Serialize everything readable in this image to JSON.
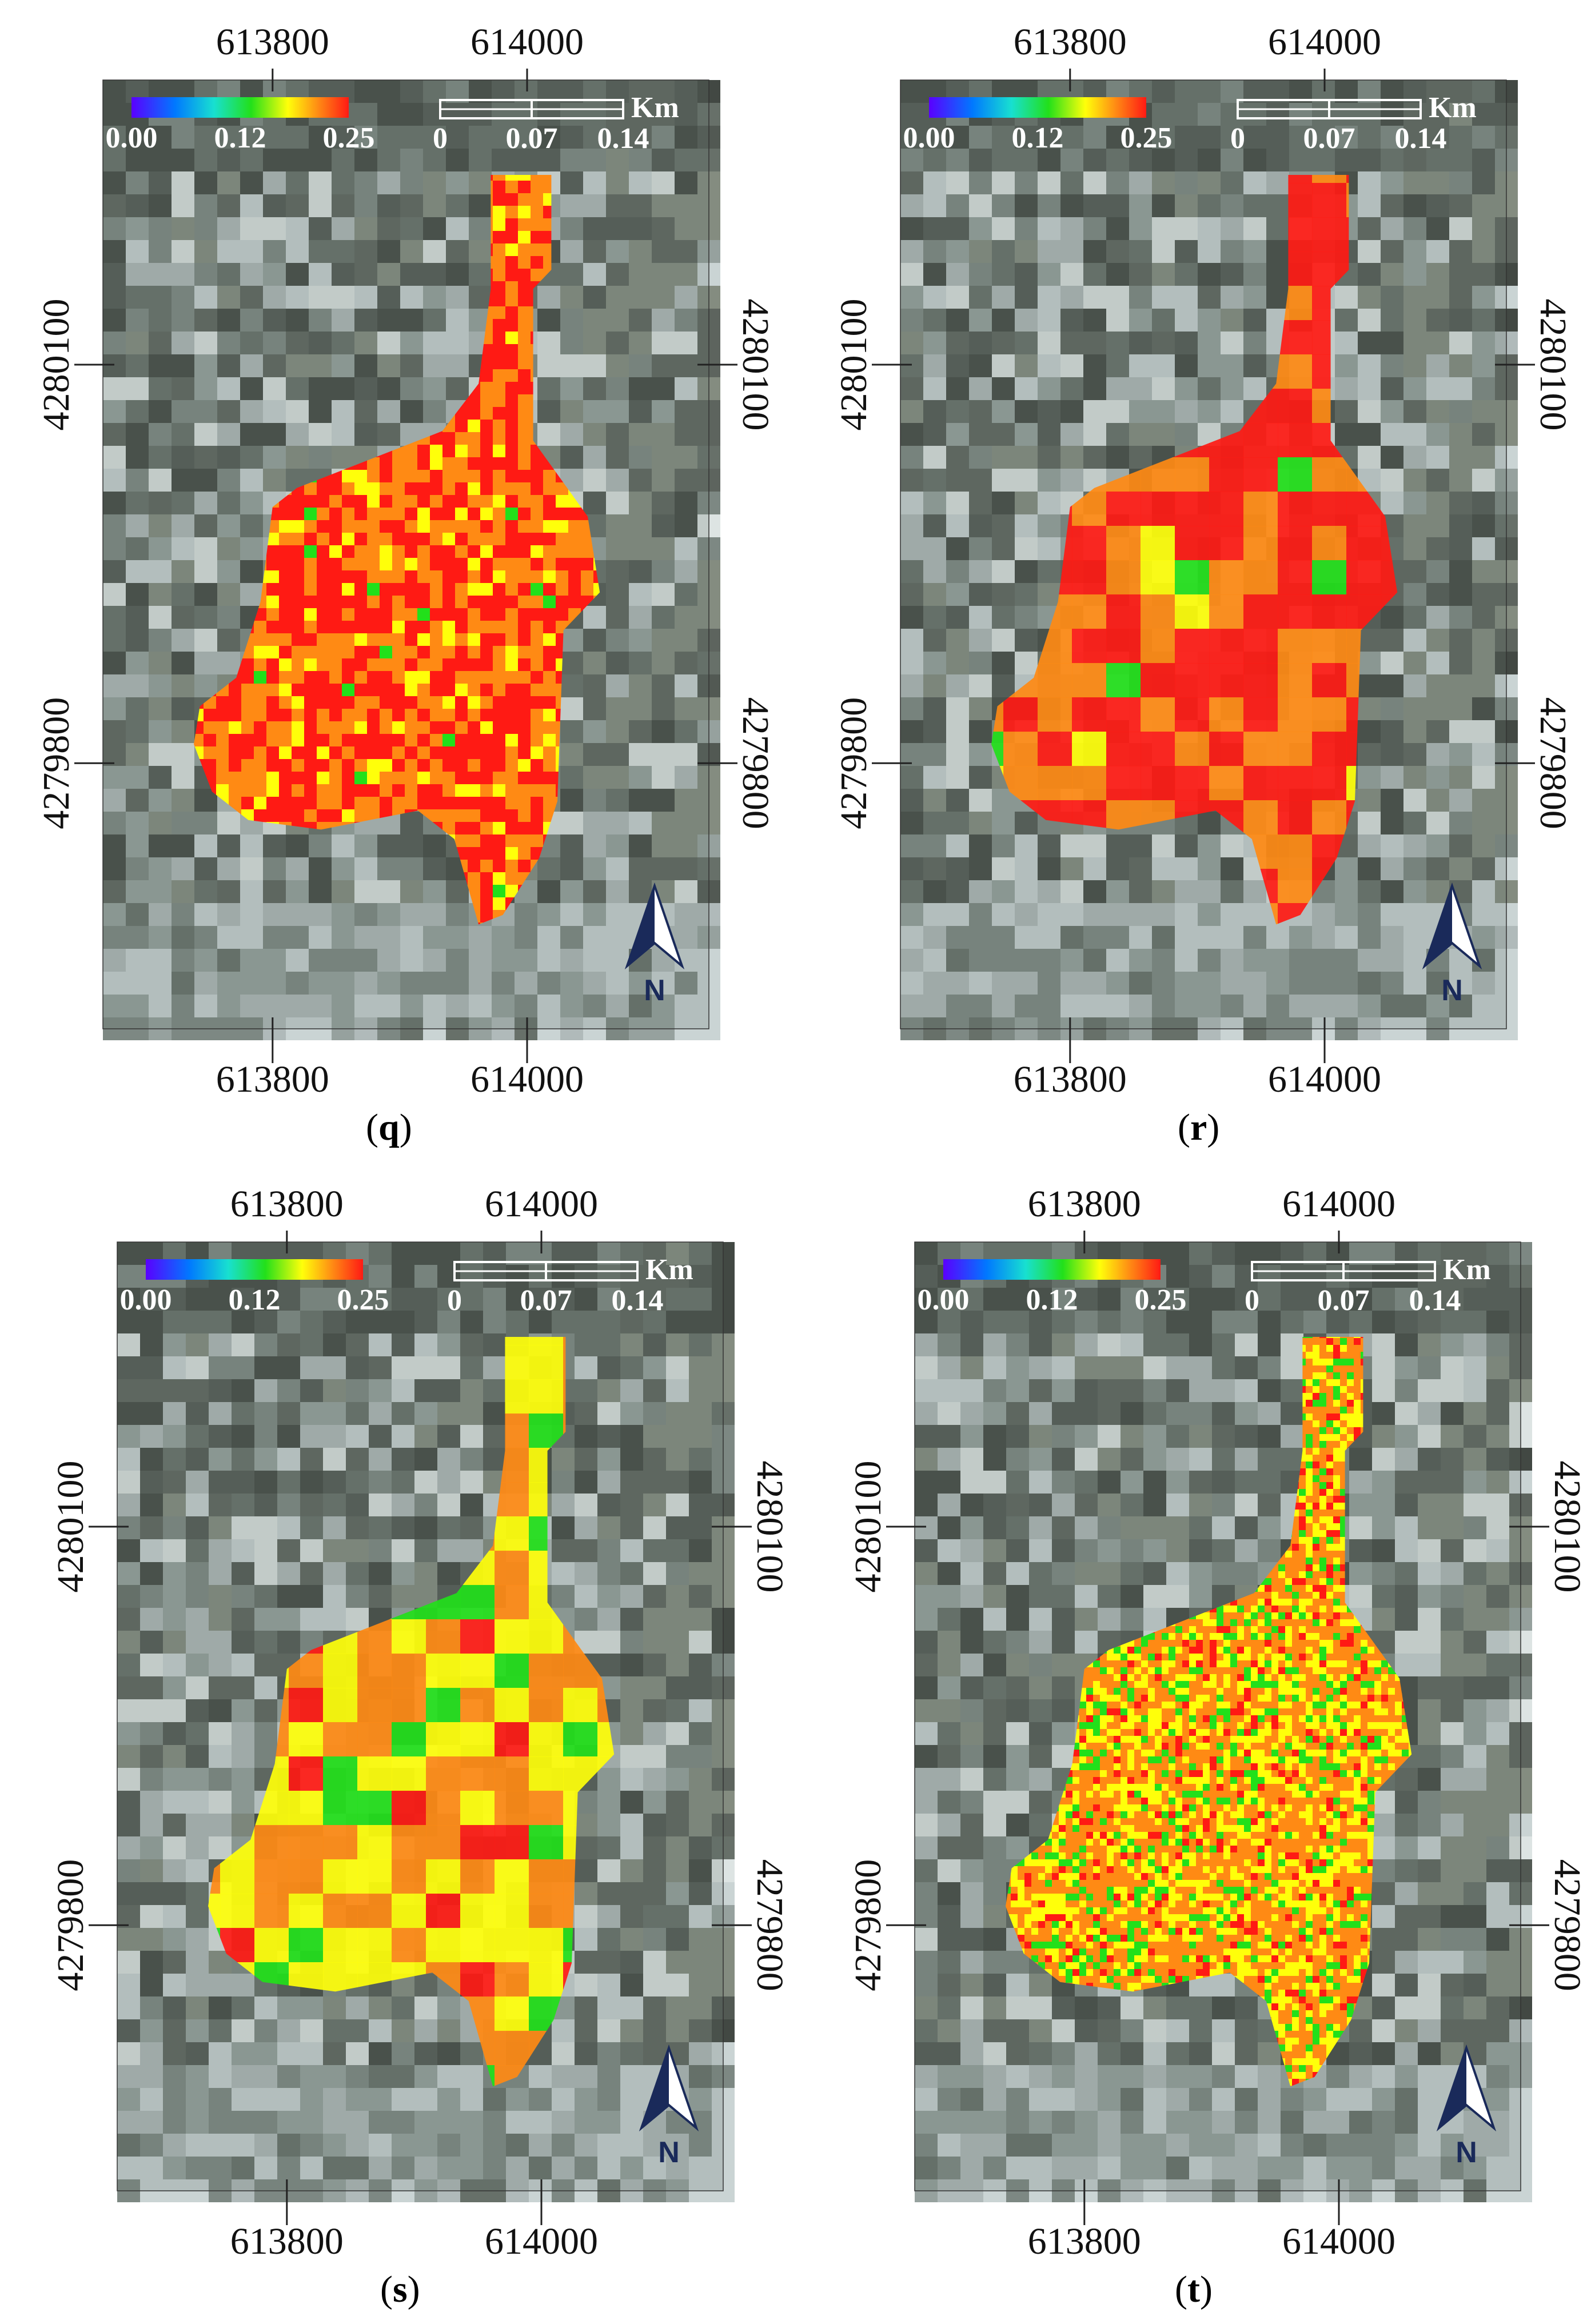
{
  "panels": [
    {
      "id": "q",
      "caption_letter": "q",
      "x_ticks": [
        "613800",
        "614000"
      ],
      "y_ticks_left": [
        "4280100",
        "4279800"
      ],
      "y_ticks_right": [
        "4280100",
        "4279800"
      ],
      "colorbar": {
        "labels": [
          "0.00",
          "0.12",
          "0.25"
        ],
        "min": 0.0,
        "max": 0.25
      },
      "scalebar": {
        "unit": "Km",
        "labels": [
          "0",
          "0.07",
          "0.14"
        ]
      },
      "north": "N",
      "style": "blocky-fine"
    },
    {
      "id": "r",
      "caption_letter": "r",
      "x_ticks": [
        "613800",
        "614000"
      ],
      "y_ticks_left": [
        "4280100",
        "4279800"
      ],
      "y_ticks_right": [
        "4280100",
        "4279800"
      ],
      "colorbar": {
        "labels": [
          "0.00",
          "0.12",
          "0.25"
        ],
        "min": 0.0,
        "max": 0.25
      },
      "scalebar": {
        "unit": "Km",
        "labels": [
          "0",
          "0.07",
          "0.14"
        ]
      },
      "north": "N",
      "style": "smooth-red"
    },
    {
      "id": "s",
      "caption_letter": "s",
      "x_ticks": [
        "613800",
        "614000"
      ],
      "y_ticks_left": [
        "4280100",
        "4279800"
      ],
      "y_ticks_right": [
        "4280100",
        "4279800"
      ],
      "colorbar": {
        "labels": [
          "0.00",
          "0.12",
          "0.25"
        ],
        "min": 0.0,
        "max": 0.25
      },
      "scalebar": {
        "unit": "Km",
        "labels": [
          "0",
          "0.07",
          "0.14"
        ]
      },
      "north": "N",
      "style": "smooth-yellow"
    },
    {
      "id": "t",
      "caption_letter": "t",
      "x_ticks": [
        "613800",
        "614000"
      ],
      "y_ticks_left": [
        "4280100",
        "4279800"
      ],
      "y_ticks_right": [
        "4280100",
        "4279800"
      ],
      "colorbar": {
        "labels": [
          "0.00",
          "0.12",
          "0.25"
        ],
        "min": 0.0,
        "max": 0.25
      },
      "scalebar": {
        "unit": "Km",
        "labels": [
          "0",
          "0.07",
          "0.14"
        ]
      },
      "north": "N",
      "style": "fine-mixed"
    }
  ],
  "colors": {
    "red": "#ff1a14",
    "orange": "#ff8a14",
    "yellow": "#ffff0a",
    "green": "#22e01a",
    "background_dark": "#3a4038",
    "background_light": "#b9c4c4"
  }
}
